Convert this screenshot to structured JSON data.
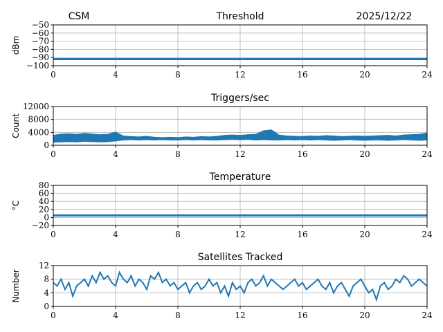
{
  "header": {
    "left": "CSM",
    "right": "2025/12/22"
  },
  "colors": {
    "line": "#1f77b4",
    "grid": "#b0b0b0"
  },
  "chart_data": [
    {
      "type": "line",
      "title": "Threshold",
      "ylabel": "dBm",
      "xlim": [
        0,
        24
      ],
      "ylim": [
        -100,
        -50
      ],
      "xticks": [
        "0",
        "4",
        "8",
        "12",
        "16",
        "20",
        "24"
      ],
      "yticks": [
        "−50",
        "−60",
        "−70",
        "−80",
        "−90",
        "−100"
      ],
      "ytick_values": [
        -50,
        -60,
        -70,
        -80,
        -90,
        -100
      ],
      "grid": true,
      "x": [
        0,
        24
      ],
      "values": [
        -92,
        -92
      ]
    },
    {
      "type": "area",
      "title": "Triggers/sec",
      "ylabel": "Count",
      "xlim": [
        0,
        24
      ],
      "ylim": [
        0,
        12000
      ],
      "xticks": [
        "0",
        "4",
        "8",
        "12",
        "16",
        "20",
        "24"
      ],
      "yticks": [
        "12000",
        "8000",
        "4000",
        "0"
      ],
      "ytick_values": [
        12000,
        8000,
        4000,
        0
      ],
      "grid": true,
      "x_step": 0.5,
      "low": [
        800,
        900,
        1000,
        900,
        1100,
        1000,
        900,
        1000,
        1200,
        1500,
        1600,
        1500,
        1600,
        1500,
        1600,
        1500,
        1500,
        1600,
        1500,
        1600,
        1500,
        1500,
        1600,
        1700,
        1600,
        1700,
        1500,
        1600,
        1500,
        1500,
        1600,
        1500,
        1600,
        1500,
        1600,
        1500,
        1400,
        1500,
        1600,
        1500,
        1400,
        1500,
        1500,
        1400,
        1500,
        1600,
        1500,
        1400,
        1500
      ],
      "high": [
        3200,
        3600,
        3700,
        3500,
        3800,
        3600,
        3400,
        3500,
        4200,
        3000,
        2800,
        2700,
        2900,
        2600,
        2500,
        2600,
        2500,
        2700,
        2600,
        2800,
        2700,
        2900,
        3200,
        3300,
        3200,
        3400,
        3500,
        4600,
        4900,
        3300,
        3000,
        2900,
        2800,
        3000,
        2900,
        3100,
        3000,
        2800,
        2900,
        3000,
        2900,
        3000,
        3100,
        3200,
        3000,
        3300,
        3400,
        3500,
        3900
      ]
    },
    {
      "type": "line",
      "title": "Temperature",
      "ylabel": "°C",
      "xlim": [
        0,
        24
      ],
      "ylim": [
        -20,
        80
      ],
      "xticks": [
        "0",
        "4",
        "8",
        "12",
        "16",
        "20",
        "24"
      ],
      "yticks": [
        "80",
        "60",
        "40",
        "20",
        "0",
        "−20"
      ],
      "ytick_values": [
        80,
        60,
        40,
        20,
        0,
        -20
      ],
      "grid": true,
      "x": [
        0,
        24
      ],
      "values": [
        5,
        5
      ]
    },
    {
      "type": "line",
      "title": "Satellites Tracked",
      "ylabel": "Number",
      "xlim": [
        0,
        24
      ],
      "ylim": [
        0,
        12
      ],
      "xticks": [
        "0",
        "4",
        "8",
        "12",
        "16",
        "20",
        "24"
      ],
      "yticks": [
        "12",
        "8",
        "4",
        "0"
      ],
      "ytick_values": [
        12,
        8,
        4,
        0
      ],
      "grid": true,
      "x_step": 0.25,
      "values": [
        7,
        6,
        8,
        5,
        7,
        3,
        6,
        7,
        8,
        6,
        9,
        7,
        10,
        8,
        9,
        7,
        6,
        10,
        8,
        7,
        9,
        6,
        8,
        7,
        5,
        9,
        8,
        10,
        7,
        8,
        6,
        7,
        5,
        6,
        7,
        4,
        6,
        7,
        5,
        6,
        8,
        6,
        7,
        4,
        6,
        3,
        7,
        5,
        6,
        4,
        7,
        8,
        6,
        7,
        9,
        6,
        8,
        7,
        6,
        5,
        6,
        7,
        8,
        6,
        7,
        5,
        6,
        7,
        8,
        6,
        5,
        7,
        4,
        6,
        7,
        5,
        3,
        6,
        7,
        8,
        6,
        4,
        5,
        2,
        6,
        7,
        5,
        6,
        8,
        7,
        9,
        8,
        6,
        7,
        8,
        7,
        6
      ]
    }
  ]
}
